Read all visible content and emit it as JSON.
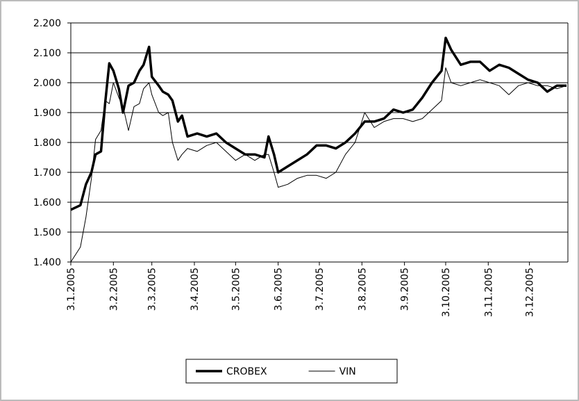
{
  "chart_data": {
    "type": "line",
    "x": [
      "3.1.2005",
      "10.1.2005",
      "14.1.2005",
      "18.1.2005",
      "21.1.2005",
      "25.1.2005",
      "28.1.2005",
      "31.1.2005",
      "3.2.2005",
      "7.2.2005",
      "10.2.2005",
      "14.2.2005",
      "18.2.2005",
      "22.2.2005",
      "25.2.2005",
      "1.3.2005",
      "3.3.2005",
      "8.3.2005",
      "11.3.2005",
      "15.3.2005",
      "18.3.2005",
      "22.3.2005",
      "25.3.2005",
      "29.3.2005",
      "5.4.2005",
      "12.4.2005",
      "19.4.2005",
      "26.4.2005",
      "3.5.2005",
      "10.5.2005",
      "17.5.2005",
      "24.5.2005",
      "27.5.2005",
      "31.5.2005",
      "3.6.2005",
      "10.6.2005",
      "17.6.2005",
      "24.6.2005",
      "1.7.2005",
      "8.7.2005",
      "15.7.2005",
      "22.7.2005",
      "29.7.2005",
      "5.8.2005",
      "12.8.2005",
      "19.8.2005",
      "26.8.2005",
      "2.9.2005",
      "9.9.2005",
      "16.9.2005",
      "23.9.2005",
      "30.9.2005",
      "3.10.2005",
      "7.10.2005",
      "14.10.2005",
      "21.10.2005",
      "28.10.2005",
      "4.11.2005",
      "11.11.2005",
      "18.11.2005",
      "25.11.2005",
      "2.12.2005",
      "9.12.2005",
      "16.12.2005",
      "23.12.2005",
      "30.12.2005"
    ],
    "series": [
      {
        "name": "CROBEX",
        "color": "#000000",
        "values": [
          1575,
          1590,
          1660,
          1700,
          1760,
          1770,
          1930,
          2065,
          2040,
          1980,
          1900,
          1990,
          2000,
          2040,
          2060,
          2120,
          2020,
          1990,
          1970,
          1960,
          1940,
          1870,
          1890,
          1820,
          1830,
          1820,
          1830,
          1800,
          1780,
          1760,
          1760,
          1750,
          1820,
          1760,
          1700,
          1720,
          1740,
          1760,
          1790,
          1790,
          1780,
          1800,
          1830,
          1870,
          1870,
          1880,
          1910,
          1900,
          1910,
          1950,
          2000,
          2040,
          2150,
          2110,
          2060,
          2070,
          2070,
          2040,
          2060,
          2050,
          2030,
          2010,
          2000,
          1970,
          1990,
          1990
        ]
      },
      {
        "name": "VIN",
        "color": "#000000",
        "values": [
          1400,
          1450,
          1550,
          1680,
          1810,
          1840,
          1940,
          1930,
          2000,
          1950,
          1920,
          1840,
          1920,
          1930,
          1980,
          2000,
          1960,
          1900,
          1890,
          1900,
          1800,
          1740,
          1760,
          1780,
          1770,
          1790,
          1800,
          1770,
          1740,
          1760,
          1740,
          1760,
          1760,
          1700,
          1650,
          1660,
          1680,
          1690,
          1690,
          1680,
          1700,
          1760,
          1800,
          1900,
          1850,
          1870,
          1880,
          1880,
          1870,
          1880,
          1910,
          1940,
          2050,
          2000,
          1990,
          2000,
          2010,
          2000,
          1990,
          1960,
          1990,
          2000,
          1990,
          1990,
          1980,
          1990
        ]
      }
    ],
    "xlim": [
      "3.1.2005",
      "31.12.2005"
    ],
    "xticks": [
      "3.1.2005",
      "3.2.2005",
      "3.3.2005",
      "3.4.2005",
      "3.5.2005",
      "3.6.2005",
      "3.7.2005",
      "3.8.2005",
      "3.9.2005",
      "3.10.2005",
      "3.11.2005",
      "3.12.2005"
    ],
    "ylim": [
      1400,
      2200
    ],
    "yticks": [
      {
        "value": 1400,
        "label": "1.400"
      },
      {
        "value": 1500,
        "label": "1.500"
      },
      {
        "value": 1600,
        "label": "1.600"
      },
      {
        "value": 1700,
        "label": "1.700"
      },
      {
        "value": 1800,
        "label": "1.800"
      },
      {
        "value": 1900,
        "label": "1.900"
      },
      {
        "value": 2000,
        "label": "2.000"
      },
      {
        "value": 2100,
        "label": "2.100"
      },
      {
        "value": 2200,
        "label": "2.200"
      }
    ],
    "grid": true,
    "legend": "bottom"
  }
}
